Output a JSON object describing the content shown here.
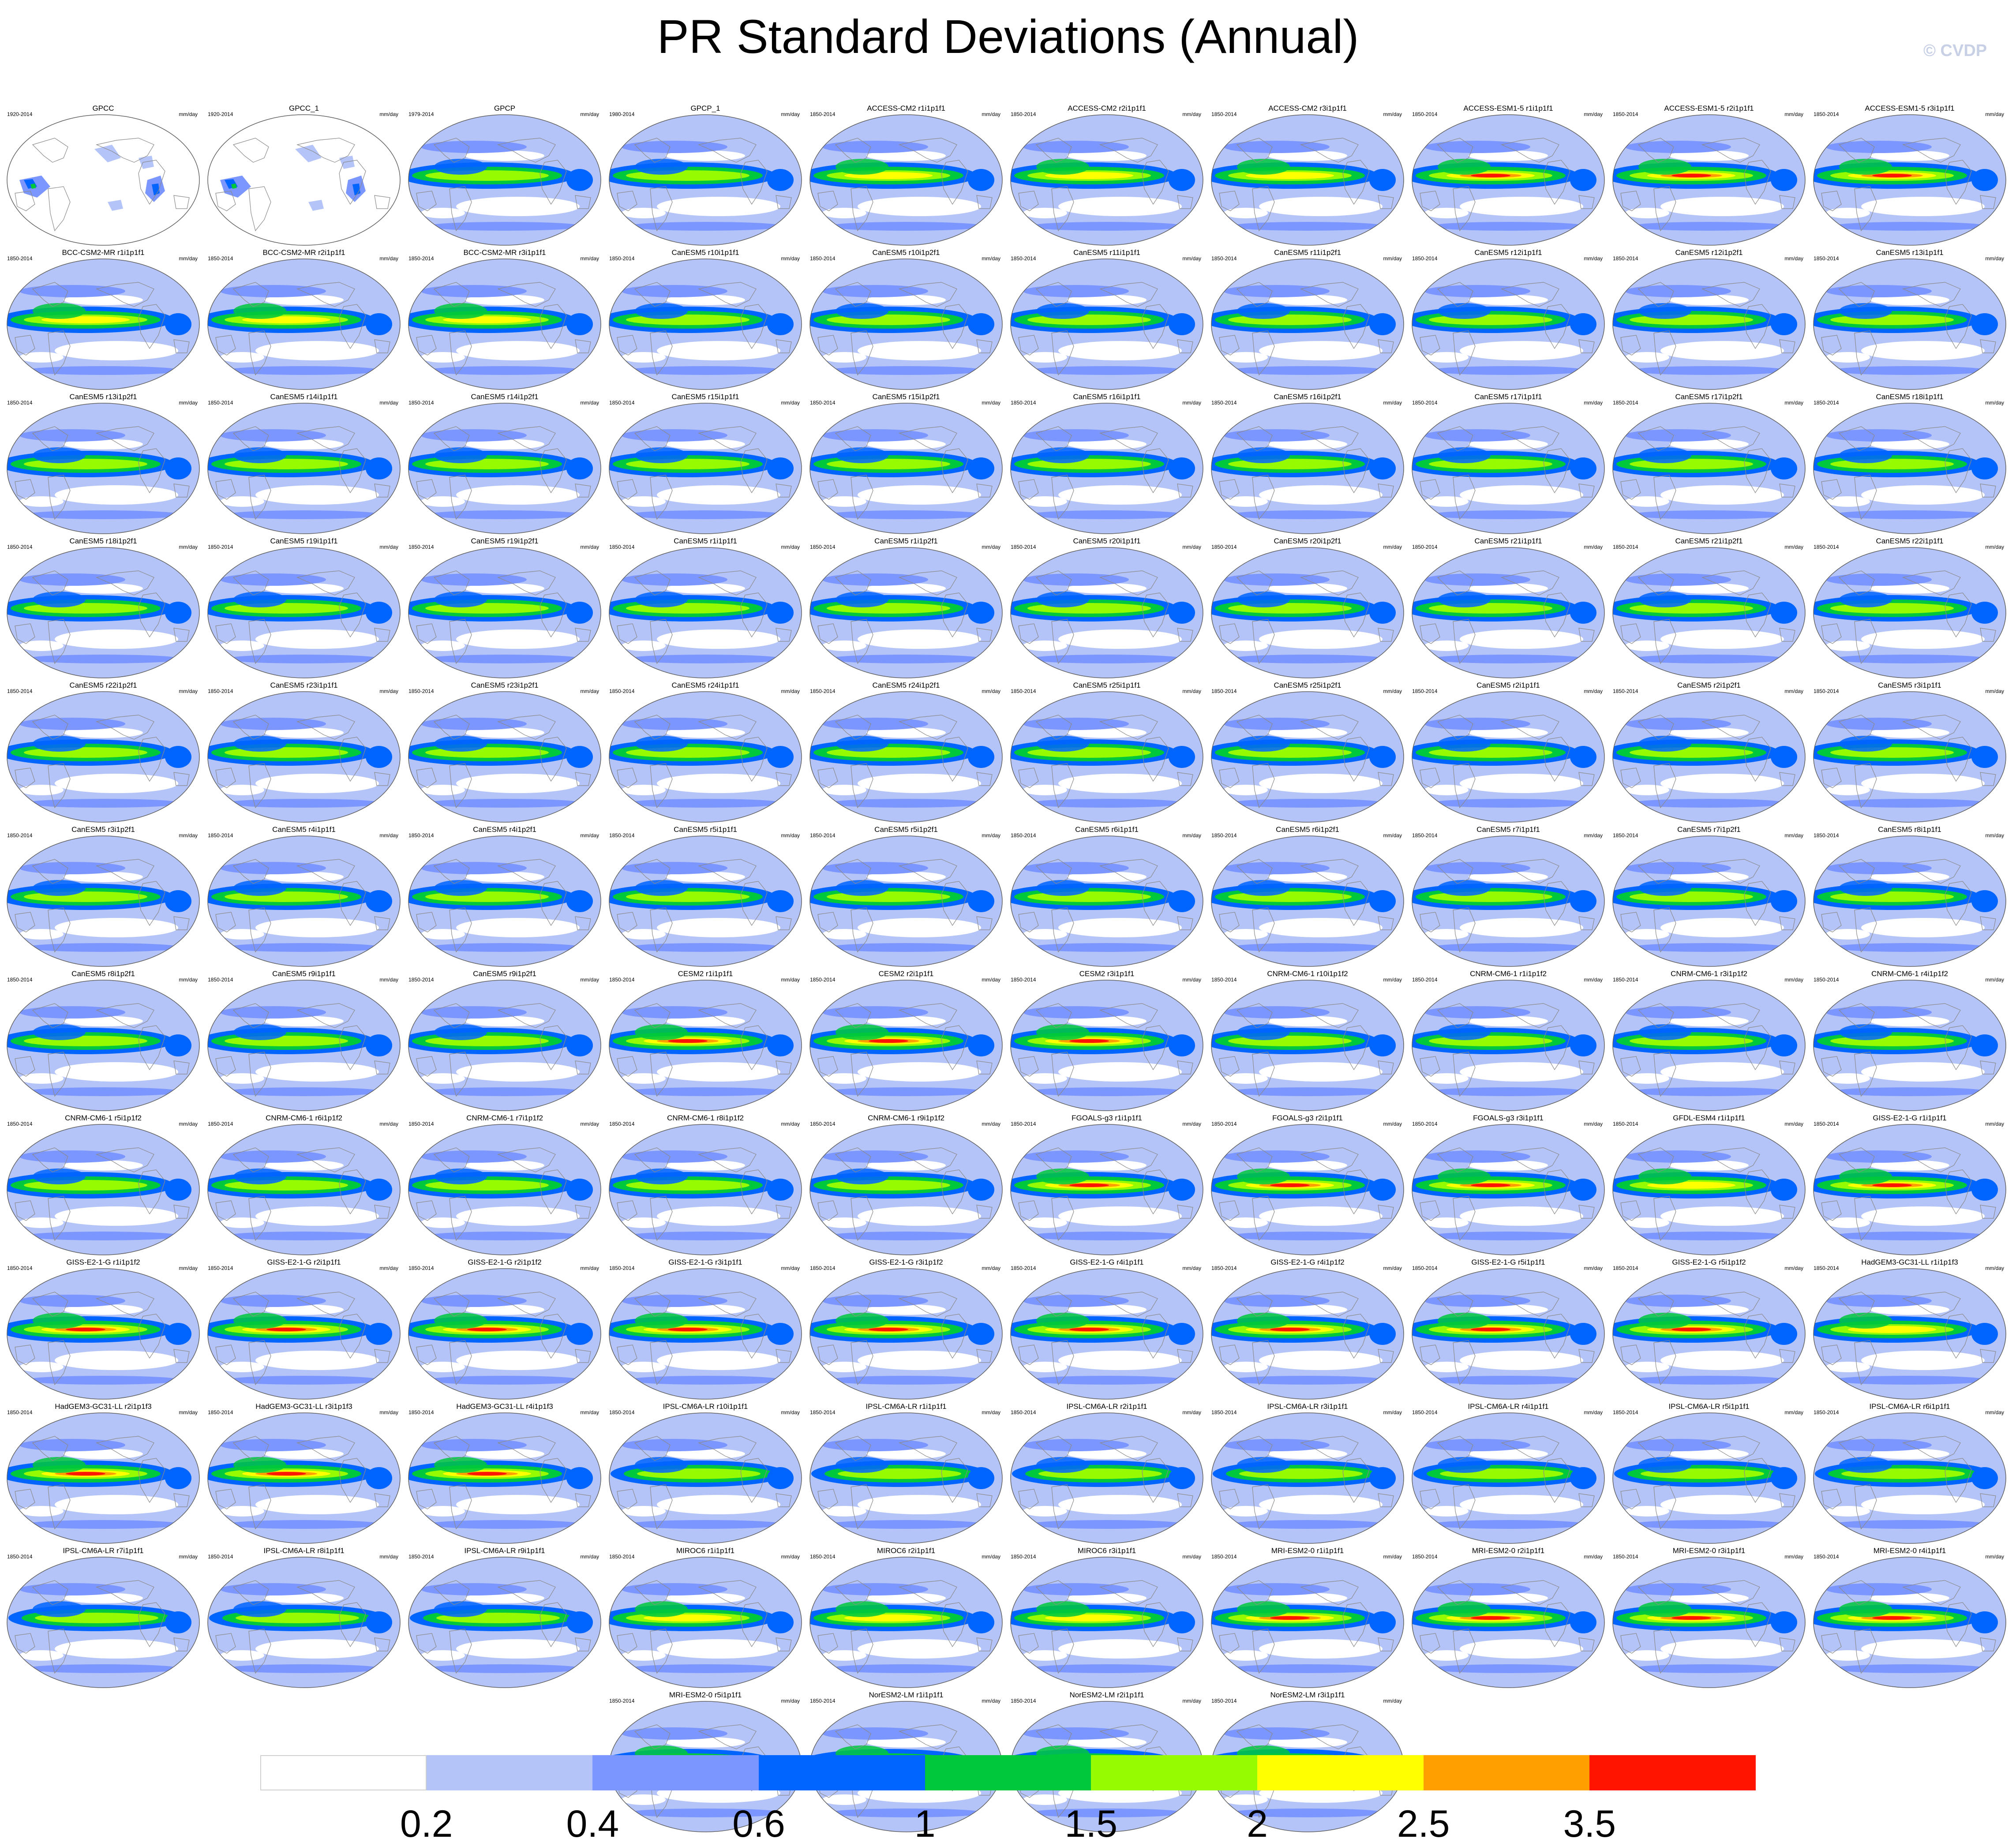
{
  "title": "PR Standard Deviations (Annual)",
  "copyright": "© CVDP",
  "units": "mm/day",
  "colorbar": {
    "colors": [
      "#ffffff",
      "#b4c4f8",
      "#7c96ff",
      "#0064ff",
      "#00c83c",
      "#96fa00",
      "#ffff00",
      "#ffa000",
      "#ff1400"
    ],
    "labels": [
      "0.2",
      "0.4",
      "0.6",
      "1",
      "1.5",
      "2",
      "2.5",
      "3.5"
    ]
  },
  "panels": [
    {
      "title": "GPCC",
      "period": "1920-2014",
      "style": "land"
    },
    {
      "title": "GPCC_1",
      "period": "1920-2014",
      "style": "land"
    },
    {
      "title": "GPCP",
      "period": "1979-2014",
      "style": "obs"
    },
    {
      "title": "GPCP_1",
      "period": "1980-2014",
      "style": "obs"
    },
    {
      "title": "ACCESS-CM2 r1i1p1f1",
      "period": "1850-2014",
      "style": "strong"
    },
    {
      "title": "ACCESS-CM2 r2i1p1f1",
      "period": "1850-2014",
      "style": "strong"
    },
    {
      "title": "ACCESS-CM2 r3i1p1f1",
      "period": "1850-2014",
      "style": "strong"
    },
    {
      "title": "ACCESS-ESM1-5 r1i1p1f1",
      "period": "1850-2014",
      "style": "hot"
    },
    {
      "title": "ACCESS-ESM1-5 r2i1p1f1",
      "period": "1850-2014",
      "style": "hot"
    },
    {
      "title": "ACCESS-ESM1-5 r3i1p1f1",
      "period": "1850-2014",
      "style": "hot"
    },
    {
      "title": "BCC-CSM2-MR r1i1p1f1",
      "period": "1850-2014",
      "style": "strong"
    },
    {
      "title": "BCC-CSM2-MR r2i1p1f1",
      "period": "1850-2014",
      "style": "strong"
    },
    {
      "title": "BCC-CSM2-MR r3i1p1f1",
      "period": "1850-2014",
      "style": "strong"
    },
    {
      "title": "CanESM5 r10i1p1f1",
      "period": "1850-2014",
      "style": "model"
    },
    {
      "title": "CanESM5 r10i1p2f1",
      "period": "1850-2014",
      "style": "model"
    },
    {
      "title": "CanESM5 r11i1p1f1",
      "period": "1850-2014",
      "style": "model"
    },
    {
      "title": "CanESM5 r11i1p2f1",
      "period": "1850-2014",
      "style": "model"
    },
    {
      "title": "CanESM5 r12i1p1f1",
      "period": "1850-2014",
      "style": "model"
    },
    {
      "title": "CanESM5 r12i1p2f1",
      "period": "1850-2014",
      "style": "model"
    },
    {
      "title": "CanESM5 r13i1p1f1",
      "period": "1850-2014",
      "style": "model"
    },
    {
      "title": "CanESM5 r13i1p2f1",
      "period": "1850-2014",
      "style": "model"
    },
    {
      "title": "CanESM5 r14i1p1f1",
      "period": "1850-2014",
      "style": "model"
    },
    {
      "title": "CanESM5 r14i1p2f1",
      "period": "1850-2014",
      "style": "model"
    },
    {
      "title": "CanESM5 r15i1p1f1",
      "period": "1850-2014",
      "style": "model"
    },
    {
      "title": "CanESM5 r15i1p2f1",
      "period": "1850-2014",
      "style": "model"
    },
    {
      "title": "CanESM5 r16i1p1f1",
      "period": "1850-2014",
      "style": "model"
    },
    {
      "title": "CanESM5 r16i1p2f1",
      "period": "1850-2014",
      "style": "model"
    },
    {
      "title": "CanESM5 r17i1p1f1",
      "period": "1850-2014",
      "style": "model"
    },
    {
      "title": "CanESM5 r17i1p2f1",
      "period": "1850-2014",
      "style": "model"
    },
    {
      "title": "CanESM5 r18i1p1f1",
      "period": "1850-2014",
      "style": "model"
    },
    {
      "title": "CanESM5 r18i1p2f1",
      "period": "1850-2014",
      "style": "model"
    },
    {
      "title": "CanESM5 r19i1p1f1",
      "period": "1850-2014",
      "style": "model"
    },
    {
      "title": "CanESM5 r19i1p2f1",
      "period": "1850-2014",
      "style": "model"
    },
    {
      "title": "CanESM5 r1i1p1f1",
      "period": "1850-2014",
      "style": "model"
    },
    {
      "title": "CanESM5 r1i1p2f1",
      "period": "1850-2014",
      "style": "model"
    },
    {
      "title": "CanESM5 r20i1p1f1",
      "period": "1850-2014",
      "style": "model"
    },
    {
      "title": "CanESM5 r20i1p2f1",
      "period": "1850-2014",
      "style": "model"
    },
    {
      "title": "CanESM5 r21i1p1f1",
      "period": "1850-2014",
      "style": "model"
    },
    {
      "title": "CanESM5 r21i1p2f1",
      "period": "1850-2014",
      "style": "model"
    },
    {
      "title": "CanESM5 r22i1p1f1",
      "period": "1850-2014",
      "style": "model"
    },
    {
      "title": "CanESM5 r22i1p2f1",
      "period": "1850-2014",
      "style": "model"
    },
    {
      "title": "CanESM5 r23i1p1f1",
      "period": "1850-2014",
      "style": "model"
    },
    {
      "title": "CanESM5 r23i1p2f1",
      "period": "1850-2014",
      "style": "model"
    },
    {
      "title": "CanESM5 r24i1p1f1",
      "period": "1850-2014",
      "style": "model"
    },
    {
      "title": "CanESM5 r24i1p2f1",
      "period": "1850-2014",
      "style": "model"
    },
    {
      "title": "CanESM5 r25i1p1f1",
      "period": "1850-2014",
      "style": "model"
    },
    {
      "title": "CanESM5 r25i1p2f1",
      "period": "1850-2014",
      "style": "model"
    },
    {
      "title": "CanESM5 r2i1p1f1",
      "period": "1850-2014",
      "style": "model"
    },
    {
      "title": "CanESM5 r2i1p2f1",
      "period": "1850-2014",
      "style": "model"
    },
    {
      "title": "CanESM5 r3i1p1f1",
      "period": "1850-2014",
      "style": "model"
    },
    {
      "title": "CanESM5 r3i1p2f1",
      "period": "1850-2014",
      "style": "model"
    },
    {
      "title": "CanESM5 r4i1p1f1",
      "period": "1850-2014",
      "style": "model"
    },
    {
      "title": "CanESM5 r4i1p2f1",
      "period": "1850-2014",
      "style": "model"
    },
    {
      "title": "CanESM5 r5i1p1f1",
      "period": "1850-2014",
      "style": "model"
    },
    {
      "title": "CanESM5 r5i1p2f1",
      "period": "1850-2014",
      "style": "model"
    },
    {
      "title": "CanESM5 r6i1p1f1",
      "period": "1850-2014",
      "style": "model"
    },
    {
      "title": "CanESM5 r6i1p2f1",
      "period": "1850-2014",
      "style": "model"
    },
    {
      "title": "CanESM5 r7i1p1f1",
      "period": "1850-2014",
      "style": "model"
    },
    {
      "title": "CanESM5 r7i1p2f1",
      "period": "1850-2014",
      "style": "model"
    },
    {
      "title": "CanESM5 r8i1p1f1",
      "period": "1850-2014",
      "style": "model"
    },
    {
      "title": "CanESM5 r8i1p2f1",
      "period": "1850-2014",
      "style": "model"
    },
    {
      "title": "CanESM5 r9i1p1f1",
      "period": "1850-2014",
      "style": "model"
    },
    {
      "title": "CanESM5 r9i1p2f1",
      "period": "1850-2014",
      "style": "model"
    },
    {
      "title": "CESM2 r1i1p1f1",
      "period": "1850-2014",
      "style": "hot"
    },
    {
      "title": "CESM2 r2i1p1f1",
      "period": "1850-2014",
      "style": "hot"
    },
    {
      "title": "CESM2 r3i1p1f1",
      "period": "1850-2014",
      "style": "hot"
    },
    {
      "title": "CNRM-CM6-1 r10i1p1f2",
      "period": "1850-2014",
      "style": "model"
    },
    {
      "title": "CNRM-CM6-1 r1i1p1f2",
      "period": "1850-2014",
      "style": "model"
    },
    {
      "title": "CNRM-CM6-1 r3i1p1f2",
      "period": "1850-2014",
      "style": "model"
    },
    {
      "title": "CNRM-CM6-1 r4i1p1f2",
      "period": "1850-2014",
      "style": "model"
    },
    {
      "title": "CNRM-CM6-1 r5i1p1f2",
      "period": "1850-2014",
      "style": "model"
    },
    {
      "title": "CNRM-CM6-1 r6i1p1f2",
      "period": "1850-2014",
      "style": "model"
    },
    {
      "title": "CNRM-CM6-1 r7i1p1f2",
      "period": "1850-2014",
      "style": "model"
    },
    {
      "title": "CNRM-CM6-1 r8i1p1f2",
      "period": "1850-2014",
      "style": "model"
    },
    {
      "title": "CNRM-CM6-1 r9i1p1f2",
      "period": "1850-2014",
      "style": "model"
    },
    {
      "title": "FGOALS-g3 r1i1p1f1",
      "period": "1850-2014",
      "style": "hot"
    },
    {
      "title": "FGOALS-g3 r2i1p1f1",
      "period": "1850-2014",
      "style": "hot"
    },
    {
      "title": "FGOALS-g3 r3i1p1f1",
      "period": "1850-2014",
      "style": "hot"
    },
    {
      "title": "GFDL-ESM4 r1i1p1f1",
      "period": "1850-2014",
      "style": "strong"
    },
    {
      "title": "GISS-E2-1-G r1i1p1f1",
      "period": "1850-2014",
      "style": "hot"
    },
    {
      "title": "GISS-E2-1-G r1i1p1f2",
      "period": "1850-2014",
      "style": "hot"
    },
    {
      "title": "GISS-E2-1-G r2i1p1f1",
      "period": "1850-2014",
      "style": "hot"
    },
    {
      "title": "GISS-E2-1-G r2i1p1f2",
      "period": "1850-2014",
      "style": "hot"
    },
    {
      "title": "GISS-E2-1-G r3i1p1f1",
      "period": "1850-2014",
      "style": "hot"
    },
    {
      "title": "GISS-E2-1-G r3i1p1f2",
      "period": "1850-2014",
      "style": "hot"
    },
    {
      "title": "GISS-E2-1-G r4i1p1f1",
      "period": "1850-2014",
      "style": "hot"
    },
    {
      "title": "GISS-E2-1-G r4i1p1f2",
      "period": "1850-2014",
      "style": "hot"
    },
    {
      "title": "GISS-E2-1-G r5i1p1f1",
      "period": "1850-2014",
      "style": "hot"
    },
    {
      "title": "GISS-E2-1-G r5i1p1f2",
      "period": "1850-2014",
      "style": "hot"
    },
    {
      "title": "HadGEM3-GC31-LL r1i1p1f3",
      "period": "1850-2014",
      "style": "strong"
    },
    {
      "title": "HadGEM3-GC31-LL r2i1p1f3",
      "period": "1850-2014",
      "style": "hot"
    },
    {
      "title": "HadGEM3-GC31-LL r3i1p1f3",
      "period": "1850-2014",
      "style": "hot"
    },
    {
      "title": "HadGEM3-GC31-LL r4i1p1f3",
      "period": "1850-2014",
      "style": "hot"
    },
    {
      "title": "IPSL-CM6A-LR r10i1p1f1",
      "period": "1850-2014",
      "style": "weak"
    },
    {
      "title": "IPSL-CM6A-LR r1i1p1f1",
      "period": "1850-2014",
      "style": "weak"
    },
    {
      "title": "IPSL-CM6A-LR r2i1p1f1",
      "period": "1850-2014",
      "style": "weak"
    },
    {
      "title": "IPSL-CM6A-LR r3i1p1f1",
      "period": "1850-2014",
      "style": "weak"
    },
    {
      "title": "IPSL-CM6A-LR r4i1p1f1",
      "period": "1850-2014",
      "style": "weak"
    },
    {
      "title": "IPSL-CM6A-LR r5i1p1f1",
      "period": "1850-2014",
      "style": "weak"
    },
    {
      "title": "IPSL-CM6A-LR r6i1p1f1",
      "period": "1850-2014",
      "style": "weak"
    },
    {
      "title": "IPSL-CM6A-LR r7i1p1f1",
      "period": "1850-2014",
      "style": "weak"
    },
    {
      "title": "IPSL-CM6A-LR r8i1p1f1",
      "period": "1850-2014",
      "style": "weak"
    },
    {
      "title": "IPSL-CM6A-LR r9i1p1f1",
      "period": "1850-2014",
      "style": "weak"
    },
    {
      "title": "MIROC6 r1i1p1f1",
      "period": "1850-2014",
      "style": "strong"
    },
    {
      "title": "MIROC6 r2i1p1f1",
      "period": "1850-2014",
      "style": "strong"
    },
    {
      "title": "MIROC6 r3i1p1f1",
      "period": "1850-2014",
      "style": "strong"
    },
    {
      "title": "MRI-ESM2-0 r1i1p1f1",
      "period": "1850-2014",
      "style": "hot"
    },
    {
      "title": "MRI-ESM2-0 r2i1p1f1",
      "period": "1850-2014",
      "style": "hot"
    },
    {
      "title": "MRI-ESM2-0 r3i1p1f1",
      "period": "1850-2014",
      "style": "hot"
    },
    {
      "title": "MRI-ESM2-0 r4i1p1f1",
      "period": "1850-2014",
      "style": "hot"
    },
    {
      "title": "MRI-ESM2-0 r5i1p1f1",
      "period": "1850-2014",
      "style": "hot"
    },
    {
      "title": "NorESM2-LM r1i1p1f1",
      "period": "1850-2014",
      "style": "hot"
    },
    {
      "title": "NorESM2-LM r2i1p1f1",
      "period": "1850-2014",
      "style": "hot"
    },
    {
      "title": "NorESM2-LM r3i1p1f1",
      "period": "1850-2014",
      "style": "hot"
    }
  ]
}
